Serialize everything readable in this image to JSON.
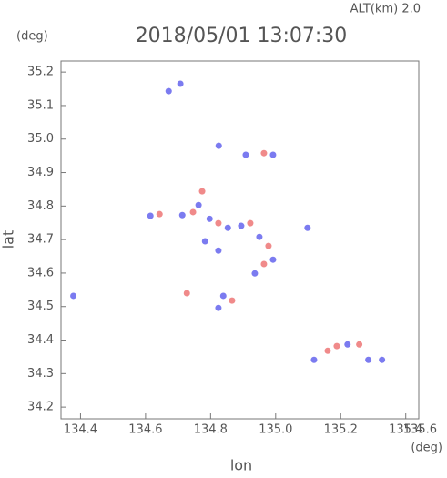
{
  "chart_data": {
    "type": "scatter",
    "title": "2018/05/01 13:07:30",
    "subtitle": "ALT(km)  2.0",
    "y_unit": "(deg)",
    "x_unit": "(deg)",
    "xlabel": "lon",
    "ylabel": "lat",
    "xlim": [
      134.34,
      135.44
    ],
    "ylim": [
      34.165,
      35.233
    ],
    "xticks": [
      134.4,
      134.6,
      134.8,
      {
        "value": 135.0,
        "label": "135.0"
      },
      135.2,
      135.4,
      135.6
    ],
    "yticks": [
      34.2,
      34.3,
      34.4,
      34.5,
      34.6,
      34.7,
      34.8,
      34.9,
      {
        "value": 35.0,
        "label": "35.0"
      },
      35.1,
      35.2
    ],
    "series": [
      {
        "color": "#7b7bf0",
        "x": [
          134.671,
          134.707,
          134.825,
          134.908,
          134.992,
          134.615,
          134.713,
          134.763,
          134.797,
          134.853,
          134.894,
          134.95,
          134.936,
          134.992,
          134.783,
          134.824,
          134.839,
          134.824,
          135.098,
          134.378,
          135.118,
          135.221,
          135.285,
          135.327
        ],
        "values": [
          35.143,
          35.165,
          34.98,
          34.953,
          34.953,
          34.771,
          34.773,
          34.803,
          34.762,
          34.735,
          34.741,
          34.708,
          34.599,
          34.64,
          34.695,
          34.667,
          34.532,
          34.496,
          34.735,
          34.532,
          34.341,
          34.387,
          34.341,
          34.341
        ]
      },
      {
        "color": "#f08a8a",
        "x": [
          134.964,
          134.643,
          134.746,
          134.774,
          134.824,
          134.922,
          134.978,
          134.964,
          134.866,
          134.727,
          135.16,
          135.188,
          135.257
        ],
        "values": [
          34.958,
          34.776,
          34.782,
          34.844,
          34.749,
          34.749,
          34.681,
          34.627,
          34.518,
          34.54,
          34.368,
          34.382,
          34.387
        ]
      }
    ]
  }
}
